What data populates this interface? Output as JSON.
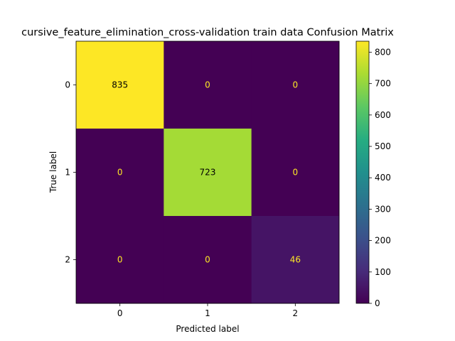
{
  "chart_data": {
    "type": "heatmap",
    "title": "cursive_feature_elimination_cross-validation train data Confusion Matrix",
    "xlabel": "Predicted label",
    "ylabel": "True label",
    "x_categories": [
      "0",
      "1",
      "2"
    ],
    "y_categories": [
      "0",
      "1",
      "2"
    ],
    "values": [
      [
        835,
        0,
        0
      ],
      [
        0,
        723,
        0
      ],
      [
        0,
        0,
        46
      ]
    ],
    "colormap": "viridis",
    "colorbar": {
      "min": 0,
      "max": 835,
      "ticks": [
        0,
        100,
        200,
        300,
        400,
        500,
        600,
        700,
        800
      ]
    },
    "annotation_colors": {
      "on_dark": "#fde725",
      "on_light": "#000000"
    }
  }
}
